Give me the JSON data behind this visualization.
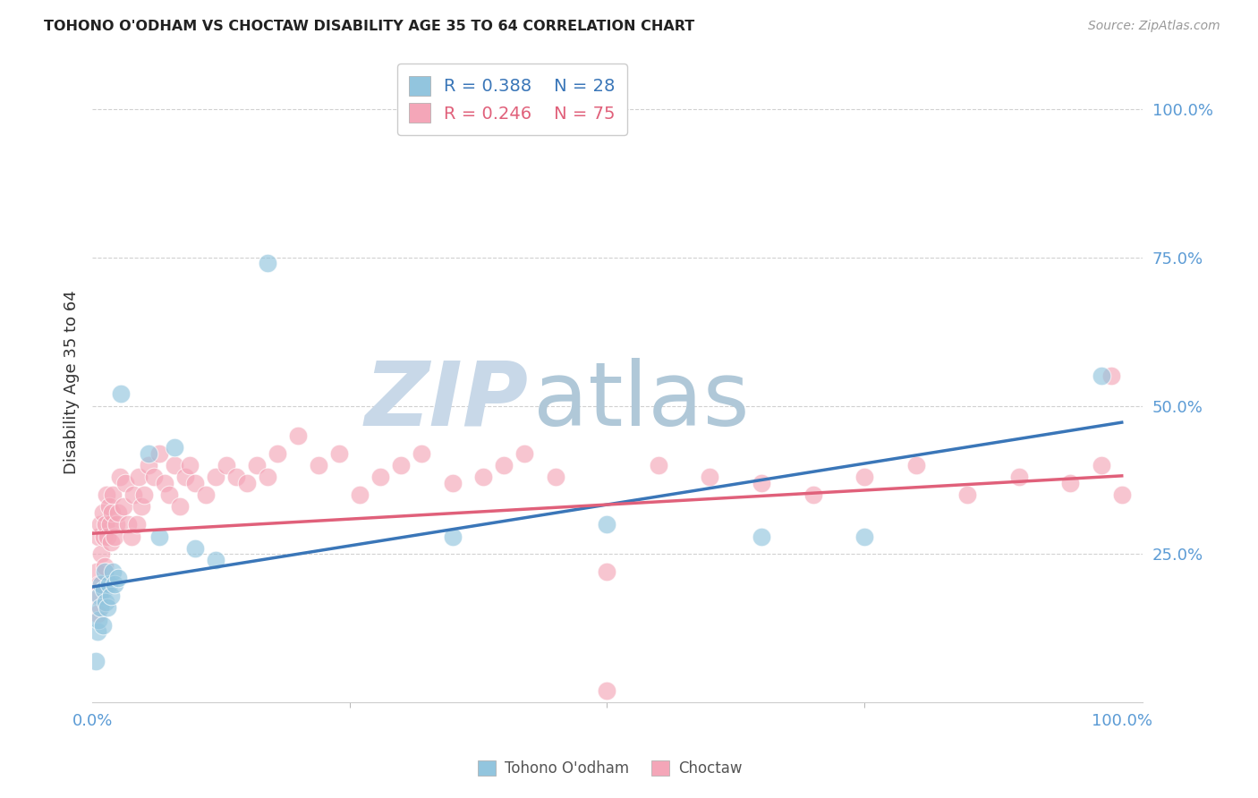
{
  "title": "TOHONO O'ODHAM VS CHOCTAW DISABILITY AGE 35 TO 64 CORRELATION CHART",
  "source": "Source: ZipAtlas.com",
  "ylabel": "Disability Age 35 to 64",
  "ytick_labels": [
    "25.0%",
    "50.0%",
    "75.0%",
    "100.0%"
  ],
  "ytick_vals": [
    0.25,
    0.5,
    0.75,
    1.0
  ],
  "xtick_labels": [
    "0.0%",
    "100.0%"
  ],
  "xtick_vals": [
    0.0,
    1.0
  ],
  "legend_label1": "Tohono O'odham",
  "legend_label2": "Choctaw",
  "R1": 0.388,
  "N1": 28,
  "R2": 0.246,
  "N2": 75,
  "color_blue": "#92c5de",
  "color_pink": "#f4a6b8",
  "line_color_blue": "#3a76b8",
  "line_color_pink": "#e0607a",
  "background_color": "#ffffff",
  "watermark_ZIP": "ZIP",
  "watermark_atlas": "atlas",
  "watermark_color_ZIP": "#c8d8e8",
  "watermark_color_atlas": "#b0c8d8",
  "grid_color": "#cccccc",
  "tick_color": "#5b9bd5",
  "title_color": "#222222",
  "source_color": "#999999",
  "ylabel_color": "#333333",
  "blue_line_start_y": 0.195,
  "blue_line_end_y": 0.472,
  "pink_line_start_y": 0.285,
  "pink_line_end_y": 0.382,
  "blue_x": [
    0.003,
    0.005,
    0.006,
    0.007,
    0.008,
    0.009,
    0.01,
    0.011,
    0.012,
    0.013,
    0.015,
    0.016,
    0.018,
    0.02,
    0.022,
    0.025,
    0.028,
    0.055,
    0.065,
    0.08,
    0.1,
    0.12,
    0.17,
    0.35,
    0.5,
    0.65,
    0.75,
    0.98
  ],
  "blue_y": [
    0.07,
    0.12,
    0.14,
    0.18,
    0.16,
    0.2,
    0.13,
    0.19,
    0.22,
    0.17,
    0.16,
    0.2,
    0.18,
    0.22,
    0.2,
    0.21,
    0.52,
    0.42,
    0.28,
    0.43,
    0.26,
    0.24,
    0.74,
    0.28,
    0.3,
    0.28,
    0.28,
    0.55
  ],
  "pink_x": [
    0.003,
    0.004,
    0.005,
    0.006,
    0.007,
    0.008,
    0.009,
    0.01,
    0.011,
    0.012,
    0.013,
    0.014,
    0.015,
    0.016,
    0.017,
    0.018,
    0.019,
    0.02,
    0.022,
    0.023,
    0.025,
    0.027,
    0.03,
    0.032,
    0.035,
    0.038,
    0.04,
    0.043,
    0.045,
    0.048,
    0.05,
    0.055,
    0.06,
    0.065,
    0.07,
    0.075,
    0.08,
    0.085,
    0.09,
    0.095,
    0.1,
    0.11,
    0.12,
    0.13,
    0.14,
    0.15,
    0.16,
    0.17,
    0.18,
    0.2,
    0.22,
    0.24,
    0.26,
    0.28,
    0.3,
    0.32,
    0.35,
    0.38,
    0.4,
    0.42,
    0.45,
    0.5,
    0.55,
    0.6,
    0.65,
    0.7,
    0.75,
    0.8,
    0.85,
    0.9,
    0.95,
    0.98,
    0.99,
    1.0,
    0.5
  ],
  "pink_y": [
    0.18,
    0.22,
    0.15,
    0.28,
    0.2,
    0.3,
    0.25,
    0.32,
    0.28,
    0.23,
    0.3,
    0.35,
    0.28,
    0.33,
    0.3,
    0.27,
    0.32,
    0.35,
    0.28,
    0.3,
    0.32,
    0.38,
    0.33,
    0.37,
    0.3,
    0.28,
    0.35,
    0.3,
    0.38,
    0.33,
    0.35,
    0.4,
    0.38,
    0.42,
    0.37,
    0.35,
    0.4,
    0.33,
    0.38,
    0.4,
    0.37,
    0.35,
    0.38,
    0.4,
    0.38,
    0.37,
    0.4,
    0.38,
    0.42,
    0.45,
    0.4,
    0.42,
    0.35,
    0.38,
    0.4,
    0.42,
    0.37,
    0.38,
    0.4,
    0.42,
    0.38,
    0.22,
    0.4,
    0.38,
    0.37,
    0.35,
    0.38,
    0.4,
    0.35,
    0.38,
    0.37,
    0.4,
    0.55,
    0.35,
    0.02
  ]
}
